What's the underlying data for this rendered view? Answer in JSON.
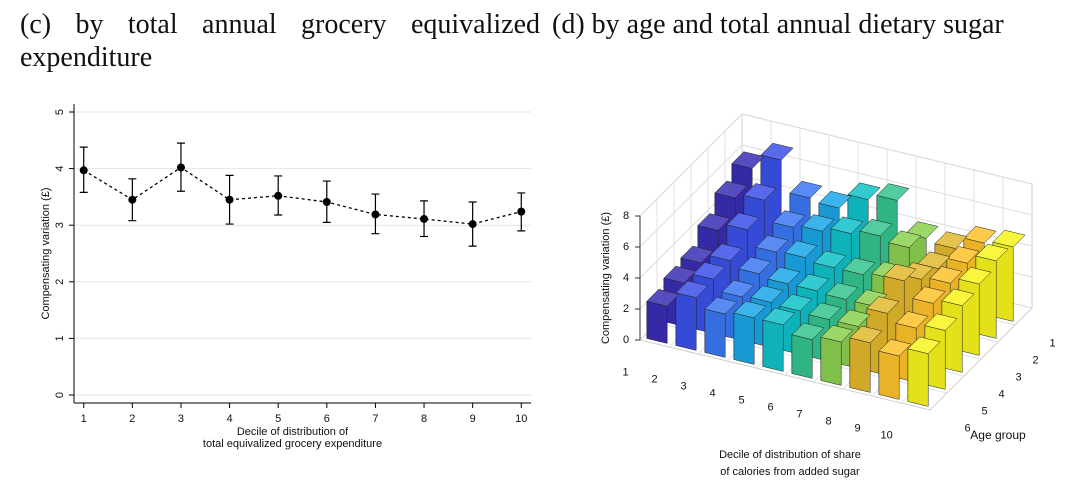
{
  "chart_data": [
    {
      "type": "line",
      "title": "(c) by total annual grocery equivalized expenditure",
      "x": [
        1,
        2,
        3,
        4,
        5,
        6,
        7,
        8,
        9,
        10
      ],
      "values": [
        3.97,
        3.45,
        4.02,
        3.45,
        3.52,
        3.41,
        3.19,
        3.11,
        3.02,
        3.24
      ],
      "ci_low": [
        3.58,
        3.08,
        3.6,
        3.02,
        3.18,
        3.05,
        2.85,
        2.8,
        2.63,
        2.9
      ],
      "ci_high": [
        4.38,
        3.82,
        4.45,
        3.88,
        3.87,
        3.78,
        3.55,
        3.43,
        3.41,
        3.57
      ],
      "xlim": [
        0.8,
        10.2
      ],
      "xticks": [
        1,
        2,
        3,
        4,
        5,
        6,
        7,
        8,
        9,
        10
      ],
      "ylim": [
        0,
        5
      ],
      "yticks": [
        0,
        1,
        2,
        3,
        4,
        5
      ],
      "x_label": [
        "Decile of distribution of",
        "total equivalized grocery expenditure"
      ],
      "y_label": "Compensating variation (£)",
      "color": "#000000",
      "grid": true
    },
    {
      "type": "bar3d",
      "title": "(d) by age and total annual dietary sugar",
      "categories": [
        1,
        2,
        3,
        4,
        5,
        6,
        7,
        8,
        9,
        10
      ],
      "depth_categories": [
        1,
        2,
        3,
        4,
        5,
        6
      ],
      "values": [
        [
          5.8,
          5.0,
          4.0,
          3.0,
          2.8,
          2.4
        ],
        [
          6.8,
          5.3,
          4.5,
          3.6,
          3.5,
          3.4
        ],
        [
          4.8,
          4.0,
          3.5,
          3.2,
          2.8,
          2.8
        ],
        [
          4.6,
          4.2,
          3.6,
          3.0,
          2.9,
          3.0
        ],
        [
          5.6,
          4.5,
          3.4,
          3.0,
          2.8,
          3.0
        ],
        [
          6.0,
          4.8,
          3.4,
          2.9,
          2.7,
          2.5
        ],
        [
          4.0,
          4.5,
          3.6,
          2.9,
          2.7,
          2.8
        ],
        [
          3.8,
          3.6,
          4.0,
          5.0,
          4.0,
          3.2
        ],
        [
          4.6,
          4.4,
          4.2,
          4.0,
          3.5,
          2.8
        ],
        [
          4.8,
          5.0,
          4.6,
          4.3,
          3.8,
          3.4
        ]
      ],
      "colors": [
        "#3a2db4",
        "#3a50e8",
        "#3a78f2",
        "#1aa6e6",
        "#10c2c8",
        "#34c48e",
        "#8ad050",
        "#e2b82c",
        "#fdc12a",
        "#f7f51c"
      ],
      "zlim": [
        0,
        8
      ],
      "zticks": [
        0,
        2,
        4,
        6,
        8
      ],
      "x_label": [
        "Decile of distribution of share",
        "of calories from added sugar"
      ],
      "depth_label": "Age group",
      "z_label": "Compensating variation (£)",
      "grid": true
    }
  ]
}
